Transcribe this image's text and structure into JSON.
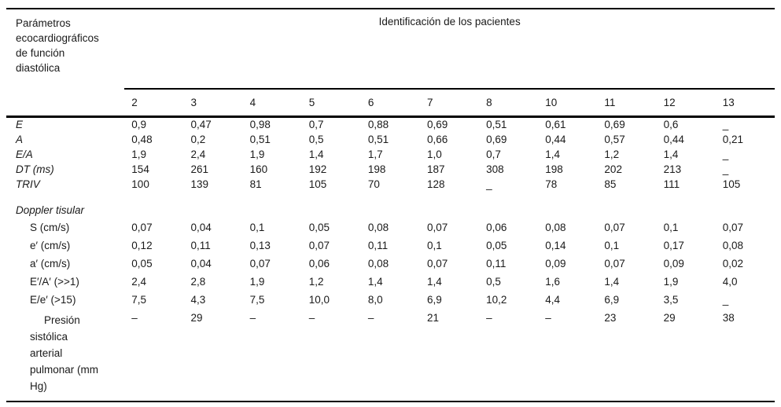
{
  "table": {
    "stub_header": "Parámetros\necocardiográficos\nde función\ndiastólica",
    "group_header": "Identificación de los pacientes",
    "columns": [
      "2",
      "3",
      "4",
      "5",
      "6",
      "7",
      "8",
      "10",
      "11",
      "12",
      "13"
    ],
    "rows": [
      {
        "label": "E",
        "class": "param",
        "values": [
          "0,9",
          "0,47",
          "0,98",
          "0,7",
          "0,88",
          "0,69",
          "0,51",
          "0,61",
          "0,69",
          "0,6",
          "_"
        ]
      },
      {
        "label": "A",
        "class": "param",
        "values": [
          "0,48",
          "0,2",
          "0,51",
          "0,5",
          "0,51",
          "0,66",
          "0,69",
          "0,44",
          "0,57",
          "0,44",
          "0,21"
        ]
      },
      {
        "label": "E/A",
        "class": "param",
        "values": [
          "1,9",
          "2,4",
          "1,9",
          "1,4",
          "1,7",
          "1,0",
          "0,7",
          "1,4",
          "1,2",
          "1,4",
          "_"
        ]
      },
      {
        "label": "DT (ms)",
        "class": "param",
        "values": [
          "154",
          "261",
          "160",
          "192",
          "198",
          "187",
          "308",
          "198",
          "202",
          "213",
          "_"
        ]
      },
      {
        "label": "TRIV",
        "class": "param",
        "values": [
          "100",
          "139",
          "81",
          "105",
          "70",
          "128",
          "_",
          "78",
          "85",
          "111",
          "105"
        ]
      },
      {
        "label": "Doppler tisular",
        "class": "section",
        "values": [
          "",
          "",
          "",
          "",
          "",
          "",
          "",
          "",
          "",
          "",
          ""
        ]
      },
      {
        "label": "S (cm/s)",
        "class": "sub",
        "values": [
          "0,07",
          "0,04",
          "0,1",
          "0,05",
          "0,08",
          "0,07",
          "0,06",
          "0,08",
          "0,07",
          "0,1",
          "0,07"
        ]
      },
      {
        "label": "e′ (cm/s)",
        "class": "sub",
        "values": [
          "0,12",
          "0,11",
          "0,13",
          "0,07",
          "0,11",
          "0,1",
          "0,05",
          "0,14",
          "0,1",
          "0,17",
          "0,08"
        ]
      },
      {
        "label": "a′ (cm/s)",
        "class": "sub",
        "values": [
          "0,05",
          "0,04",
          "0,07",
          "0,06",
          "0,08",
          "0,07",
          "0,11",
          "0,09",
          "0,07",
          "0,09",
          "0,02"
        ]
      },
      {
        "label": "E′/A′ (>>1)",
        "class": "sub",
        "values": [
          "2,4",
          "2,8",
          "1,9",
          "1,2",
          "1,4",
          "1,4",
          "0,5",
          "1,6",
          "1,4",
          "1,9",
          "4,0"
        ]
      },
      {
        "label": "E/e′ (>15)",
        "class": "sub",
        "values": [
          "7,5",
          "4,3",
          "7,5",
          "10,0",
          "8,0",
          "6,9",
          "10,2",
          "4,4",
          "6,9",
          "3,5",
          "_"
        ]
      },
      {
        "label": "Presión\nsistólica\narterial\npulmonar (mm\nHg)",
        "class": "sub tall",
        "values": [
          "–",
          "29",
          "–",
          "–",
          "–",
          "21",
          "–",
          "–",
          "23",
          "29",
          "38"
        ]
      }
    ],
    "colors": {
      "text": "#1a1a1a",
      "rule": "#000000",
      "background": "#ffffff"
    }
  }
}
